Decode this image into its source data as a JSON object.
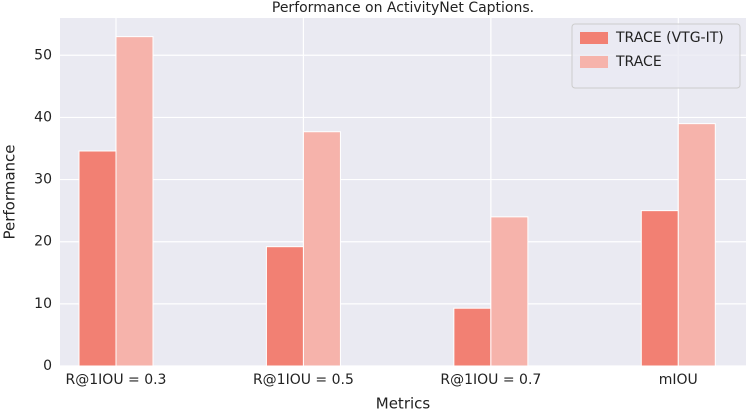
{
  "chart_data": {
    "type": "bar",
    "title": "Performance on ActivityNet Captions.",
    "x_label": "Metrics",
    "y_label": "Performance",
    "categories": [
      "R@1IOU = 0.3",
      "R@1IOU = 0.5",
      "R@1IOU = 0.7",
      "mIOU"
    ],
    "series": [
      {
        "name": "TRACE (VTG-IT)",
        "color": "#f28073",
        "values": [
          34.6,
          19.2,
          9.3,
          25.0
        ]
      },
      {
        "name": "TRACE",
        "color": "#f6b3ab",
        "values": [
          53.0,
          37.7,
          24.0,
          39.0
        ]
      }
    ],
    "ylim": [
      0,
      56
    ],
    "yticks": [
      0,
      10,
      20,
      30,
      40,
      50
    ],
    "grid": true,
    "legend": "upper right"
  }
}
